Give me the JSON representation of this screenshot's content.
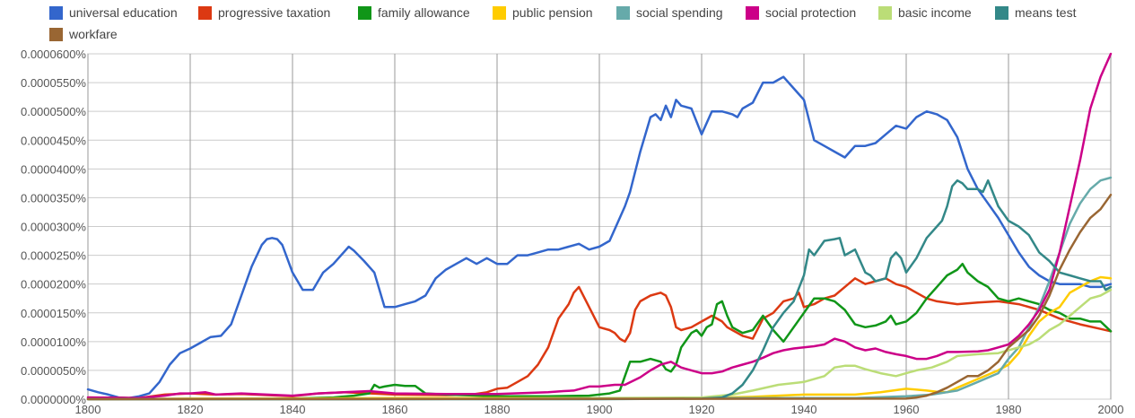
{
  "chart_data": {
    "type": "line",
    "title": "",
    "xlabel": "",
    "ylabel": "",
    "xlim": [
      1800,
      2000
    ],
    "ylim": [
      0,
      6e-05
    ],
    "grid": true,
    "legend_placement": "top",
    "x_ticks": [
      "1800",
      "1820",
      "1840",
      "1860",
      "1880",
      "1900",
      "1920",
      "1940",
      "1960",
      "1980",
      "2000"
    ],
    "y_ticks": [
      "0.0000000%",
      "0.0000050%",
      "0.0000100%",
      "0.0000150%",
      "0.0000200%",
      "0.0000250%",
      "0.0000300%",
      "0.0000350%",
      "0.0000400%",
      "0.0000450%",
      "0.0000500%",
      "0.0000550%",
      "0.0000600%"
    ],
    "series": [
      {
        "name": "universal education",
        "color": "#3366cc",
        "x": [
          1800,
          1802,
          1804,
          1806,
          1808,
          1810,
          1812,
          1814,
          1816,
          1818,
          1820,
          1822,
          1824,
          1826,
          1828,
          1830,
          1832,
          1834,
          1835,
          1836,
          1837,
          1838,
          1840,
          1842,
          1844,
          1846,
          1848,
          1850,
          1851,
          1852,
          1854,
          1856,
          1858,
          1860,
          1862,
          1864,
          1866,
          1868,
          1870,
          1872,
          1874,
          1876,
          1878,
          1880,
          1882,
          1884,
          1886,
          1888,
          1890,
          1892,
          1894,
          1896,
          1898,
          1900,
          1902,
          1904,
          1905,
          1906,
          1908,
          1910,
          1911,
          1912,
          1913,
          1914,
          1915,
          1916,
          1918,
          1920,
          1922,
          1924,
          1926,
          1927,
          1928,
          1930,
          1932,
          1934,
          1935,
          1936,
          1938,
          1940,
          1942,
          1944,
          1946,
          1948,
          1950,
          1952,
          1954,
          1956,
          1958,
          1960,
          1962,
          1964,
          1966,
          1968,
          1970,
          1972,
          1974,
          1976,
          1978,
          1980,
          1982,
          1984,
          1986,
          1988,
          1990,
          1992,
          1994,
          1996,
          1998,
          2000
        ],
        "values": [
          1.7e-06,
          1.2e-06,
          8e-07,
          3e-07,
          2e-07,
          5e-07,
          1e-06,
          3e-06,
          6e-06,
          8e-06,
          8.8e-06,
          9.8e-06,
          1.08e-05,
          1.1e-05,
          1.3e-05,
          1.8e-05,
          2.3e-05,
          2.68e-05,
          2.78e-05,
          2.8e-05,
          2.78e-05,
          2.68e-05,
          2.2e-05,
          1.9e-05,
          1.9e-05,
          2.2e-05,
          2.35e-05,
          2.55e-05,
          2.65e-05,
          2.58e-05,
          2.4e-05,
          2.2e-05,
          1.6e-05,
          1.6e-05,
          1.65e-05,
          1.7e-05,
          1.8e-05,
          2.1e-05,
          2.25e-05,
          2.35e-05,
          2.45e-05,
          2.35e-05,
          2.45e-05,
          2.35e-05,
          2.35e-05,
          2.5e-05,
          2.5e-05,
          2.55e-05,
          2.6e-05,
          2.6e-05,
          2.65e-05,
          2.7e-05,
          2.6e-05,
          2.65e-05,
          2.75e-05,
          3.15e-05,
          3.35e-05,
          3.6e-05,
          4.3e-05,
          4.9e-05,
          4.95e-05,
          4.85e-05,
          5.1e-05,
          4.9e-05,
          5.2e-05,
          5.1e-05,
          5.05e-05,
          4.6e-05,
          5e-05,
          5e-05,
          4.95e-05,
          4.9e-05,
          5.05e-05,
          5.15e-05,
          5.5e-05,
          5.5e-05,
          5.55e-05,
          5.6e-05,
          5.4e-05,
          5.2e-05,
          4.5e-05,
          4.4e-05,
          4.3e-05,
          4.2e-05,
          4.4e-05,
          4.4e-05,
          4.45e-05,
          4.6e-05,
          4.75e-05,
          4.7e-05,
          4.9e-05,
          5e-05,
          4.95e-05,
          4.85e-05,
          4.55e-05,
          4e-05,
          3.65e-05,
          3.4e-05,
          3.15e-05,
          2.85e-05,
          2.55e-05,
          2.3e-05,
          2.15e-05,
          2.05e-05,
          2e-05,
          2e-05,
          2e-05,
          1.95e-05,
          1.95e-05,
          2e-05
        ]
      },
      {
        "name": "progressive taxation",
        "color": "#dc3912",
        "x": [
          1800,
          1810,
          1815,
          1820,
          1825,
          1830,
          1840,
          1845,
          1850,
          1860,
          1870,
          1875,
          1878,
          1880,
          1882,
          1884,
          1886,
          1888,
          1890,
          1892,
          1894,
          1895,
          1896,
          1898,
          1900,
          1902,
          1903,
          1904,
          1905,
          1906,
          1907,
          1908,
          1910,
          1912,
          1913,
          1914,
          1915,
          1916,
          1918,
          1920,
          1922,
          1924,
          1925,
          1926,
          1927,
          1928,
          1930,
          1932,
          1934,
          1936,
          1938,
          1939,
          1940,
          1942,
          1944,
          1946,
          1948,
          1950,
          1952,
          1954,
          1956,
          1958,
          1960,
          1962,
          1964,
          1966,
          1970,
          1974,
          1978,
          1982,
          1986,
          1990,
          1994,
          1998,
          2000
        ],
        "values": [
          3e-07,
          2e-07,
          8e-07,
          1e-06,
          8e-07,
          9e-07,
          5e-07,
          1e-06,
          1.2e-06,
          8e-07,
          7e-07,
          8e-07,
          1.2e-06,
          1.8e-06,
          2e-06,
          3e-06,
          4e-06,
          6e-06,
          9e-06,
          1.4e-05,
          1.65e-05,
          1.85e-05,
          1.95e-05,
          1.6e-05,
          1.25e-05,
          1.2e-05,
          1.15e-05,
          1.05e-05,
          1e-05,
          1.15e-05,
          1.55e-05,
          1.7e-05,
          1.8e-05,
          1.85e-05,
          1.8e-05,
          1.6e-05,
          1.25e-05,
          1.2e-05,
          1.25e-05,
          1.35e-05,
          1.45e-05,
          1.35e-05,
          1.25e-05,
          1.2e-05,
          1.15e-05,
          1.1e-05,
          1.05e-05,
          1.4e-05,
          1.5e-05,
          1.7e-05,
          1.75e-05,
          1.85e-05,
          1.6e-05,
          1.65e-05,
          1.75e-05,
          1.8e-05,
          1.95e-05,
          2.1e-05,
          2e-05,
          2.05e-05,
          2.1e-05,
          2e-05,
          1.95e-05,
          1.85e-05,
          1.75e-05,
          1.7e-05,
          1.65e-05,
          1.68e-05,
          1.7e-05,
          1.65e-05,
          1.55e-05,
          1.4e-05,
          1.3e-05,
          1.22e-05,
          1.18e-05
        ]
      },
      {
        "name": "family allowance",
        "color": "#109618",
        "x": [
          1800,
          1840,
          1848,
          1852,
          1855,
          1856,
          1857,
          1858,
          1860,
          1862,
          1864,
          1866,
          1870,
          1880,
          1890,
          1898,
          1900,
          1902,
          1904,
          1905,
          1906,
          1908,
          1910,
          1912,
          1913,
          1914,
          1915,
          1916,
          1918,
          1919,
          1920,
          1921,
          1922,
          1923,
          1924,
          1925,
          1926,
          1928,
          1930,
          1932,
          1934,
          1936,
          1938,
          1940,
          1942,
          1944,
          1946,
          1948,
          1950,
          1952,
          1954,
          1956,
          1957,
          1958,
          1960,
          1962,
          1964,
          1966,
          1968,
          1970,
          1971,
          1972,
          1974,
          1976,
          1978,
          1980,
          1982,
          1984,
          1986,
          1988,
          1990,
          1992,
          1994,
          1996,
          1998,
          2000
        ],
        "values": [
          0,
          1e-07,
          3e-07,
          6e-07,
          1e-06,
          2.5e-06,
          2e-06,
          2.2e-06,
          2.5e-06,
          2.3e-06,
          2.3e-06,
          1e-06,
          8e-07,
          5e-07,
          5e-07,
          6e-07,
          8e-07,
          1e-06,
          1.5e-06,
          4e-06,
          6.5e-06,
          6.5e-06,
          7e-06,
          6.5e-06,
          5.2e-06,
          4.8e-06,
          6e-06,
          9e-06,
          1.15e-05,
          1.2e-05,
          1.1e-05,
          1.25e-05,
          1.3e-05,
          1.65e-05,
          1.7e-05,
          1.45e-05,
          1.25e-05,
          1.15e-05,
          1.2e-05,
          1.45e-05,
          1.2e-05,
          1e-05,
          1.25e-05,
          1.5e-05,
          1.75e-05,
          1.75e-05,
          1.7e-05,
          1.55e-05,
          1.3e-05,
          1.25e-05,
          1.28e-05,
          1.35e-05,
          1.45e-05,
          1.3e-05,
          1.35e-05,
          1.5e-05,
          1.75e-05,
          1.95e-05,
          2.15e-05,
          2.25e-05,
          2.35e-05,
          2.2e-05,
          2.05e-05,
          1.95e-05,
          1.75e-05,
          1.7e-05,
          1.75e-05,
          1.7e-05,
          1.65e-05,
          1.55e-05,
          1.5e-05,
          1.4e-05,
          1.4e-05,
          1.35e-05,
          1.35e-05,
          1.18e-05
        ]
      },
      {
        "name": "public pension",
        "color": "#ffcc00",
        "x": [
          1800,
          1820,
          1840,
          1860,
          1880,
          1900,
          1920,
          1930,
          1940,
          1950,
          1955,
          1960,
          1964,
          1966,
          1968,
          1970,
          1974,
          1978,
          1980,
          1982,
          1984,
          1986,
          1988,
          1990,
          1992,
          1994,
          1996,
          1998,
          2000
        ],
        "values": [
          0,
          1e-07,
          1e-07,
          2e-07,
          2e-07,
          2e-07,
          2e-07,
          4e-07,
          8e-07,
          8e-07,
          1.2e-06,
          1.8e-06,
          1.5e-06,
          1.3e-06,
          1.2e-06,
          2e-06,
          3.5e-06,
          5e-06,
          6e-06,
          8e-06,
          1.1e-05,
          1.35e-05,
          1.5e-05,
          1.6e-05,
          1.85e-05,
          1.95e-05,
          2.05e-05,
          2.12e-05,
          2.1e-05
        ]
      },
      {
        "name": "social spending",
        "color": "#66aaaa",
        "x": [
          1800,
          1850,
          1900,
          1920,
          1940,
          1950,
          1960,
          1965,
          1970,
          1974,
          1978,
          1980,
          1982,
          1984,
          1986,
          1988,
          1990,
          1992,
          1994,
          1996,
          1998,
          2000
        ],
        "values": [
          0,
          0,
          1e-07,
          2e-07,
          2e-07,
          2e-07,
          5e-07,
          8e-07,
          1.5e-06,
          3e-06,
          4.5e-06,
          7e-06,
          9e-06,
          1.25e-05,
          1.6e-05,
          2.05e-05,
          2.55e-05,
          3.05e-05,
          3.4e-05,
          3.65e-05,
          3.8e-05,
          3.85e-05
        ]
      },
      {
        "name": "social protection",
        "color": "#cc0088",
        "x": [
          1800,
          1810,
          1815,
          1818,
          1820,
          1823,
          1825,
          1830,
          1840,
          1845,
          1850,
          1855,
          1860,
          1870,
          1880,
          1890,
          1893,
          1895,
          1898,
          1900,
          1903,
          1905,
          1908,
          1910,
          1912,
          1914,
          1916,
          1918,
          1920,
          1922,
          1924,
          1926,
          1928,
          1930,
          1932,
          1934,
          1936,
          1938,
          1940,
          1942,
          1944,
          1946,
          1948,
          1950,
          1952,
          1954,
          1956,
          1958,
          1960,
          1962,
          1964,
          1966,
          1968,
          1970,
          1974,
          1976,
          1978,
          1980,
          1982,
          1984,
          1986,
          1988,
          1990,
          1992,
          1994,
          1996,
          1998,
          2000
        ],
        "values": [
          3e-07,
          2e-07,
          6e-07,
          1e-06,
          1e-06,
          1.2e-06,
          8e-07,
          1e-06,
          6e-07,
          1e-06,
          1.2e-06,
          1.4e-06,
          1e-06,
          9e-07,
          9e-07,
          1.2e-06,
          1.4e-06,
          1.5e-06,
          2.2e-06,
          2.2e-06,
          2.5e-06,
          2.5e-06,
          3.8e-06,
          5e-06,
          6e-06,
          6.5e-06,
          5.5e-06,
          5e-06,
          4.5e-06,
          4.5e-06,
          4.8e-06,
          5.5e-06,
          6e-06,
          6.5e-06,
          7.2e-06,
          8e-06,
          8.5e-06,
          8.8e-06,
          9e-06,
          9.2e-06,
          9.5e-06,
          1.05e-05,
          1e-05,
          9e-06,
          8.5e-06,
          8.8e-06,
          8.2e-06,
          7.8e-06,
          7.5e-06,
          7e-06,
          7e-06,
          7.5e-06,
          8.2e-06,
          8.2e-06,
          8.3e-06,
          8.5e-06,
          9e-06,
          9.5e-06,
          1.1e-05,
          1.3e-05,
          1.55e-05,
          1.9e-05,
          2.55e-05,
          3.35e-05,
          4.15e-05,
          5.05e-05,
          5.6e-05,
          6e-05
        ]
      },
      {
        "name": "basic income",
        "color": "#bbdd77",
        "x": [
          1800,
          1880,
          1900,
          1920,
          1926,
          1930,
          1935,
          1940,
          1944,
          1946,
          1948,
          1950,
          1952,
          1955,
          1958,
          1960,
          1962,
          1965,
          1968,
          1970,
          1974,
          1978,
          1980,
          1982,
          1984,
          1986,
          1988,
          1990,
          1992,
          1994,
          1996,
          1998,
          2000
        ],
        "values": [
          0,
          1e-07,
          2e-07,
          3e-07,
          8e-07,
          1.5e-06,
          2.5e-06,
          3e-06,
          4e-06,
          5.5e-06,
          5.8e-06,
          5.8e-06,
          5.2e-06,
          4.5e-06,
          4e-06,
          4.5e-06,
          5e-06,
          5.5e-06,
          6.5e-06,
          7.5e-06,
          7.8e-06,
          8e-06,
          8.5e-06,
          9e-06,
          9.5e-06,
          1.05e-05,
          1.2e-05,
          1.3e-05,
          1.45e-05,
          1.6e-05,
          1.75e-05,
          1.8e-05,
          1.9e-05
        ]
      },
      {
        "name": "means test",
        "color": "#338888",
        "x": [
          1800,
          1900,
          1920,
          1924,
          1926,
          1928,
          1930,
          1932,
          1934,
          1936,
          1938,
          1940,
          1941,
          1942,
          1944,
          1946,
          1947,
          1948,
          1949,
          1950,
          1951,
          1952,
          1953,
          1954,
          1956,
          1957,
          1958,
          1959,
          1960,
          1962,
          1964,
          1966,
          1967,
          1968,
          1969,
          1970,
          1971,
          1972,
          1974,
          1975,
          1976,
          1978,
          1980,
          1982,
          1984,
          1986,
          1988,
          1990,
          1992,
          1994,
          1996,
          1998,
          1999,
          2000
        ],
        "values": [
          0,
          0,
          1e-07,
          3e-07,
          1e-06,
          2.5e-06,
          5e-06,
          8.5e-06,
          1.25e-05,
          1.5e-05,
          1.7e-05,
          2.15e-05,
          2.6e-05,
          2.5e-05,
          2.75e-05,
          2.78e-05,
          2.8e-05,
          2.5e-05,
          2.55e-05,
          2.6e-05,
          2.4e-05,
          2.2e-05,
          2.15e-05,
          2.05e-05,
          2.1e-05,
          2.45e-05,
          2.55e-05,
          2.45e-05,
          2.2e-05,
          2.45e-05,
          2.8e-05,
          3e-05,
          3.1e-05,
          3.35e-05,
          3.7e-05,
          3.8e-05,
          3.75e-05,
          3.65e-05,
          3.65e-05,
          3.6e-05,
          3.8e-05,
          3.35e-05,
          3.1e-05,
          3e-05,
          2.85e-05,
          2.55e-05,
          2.4e-05,
          2.2e-05,
          2.15e-05,
          2.1e-05,
          2.05e-05,
          2.05e-05,
          1.9e-05,
          1.95e-05
        ]
      },
      {
        "name": "workfare",
        "color": "#996633",
        "x": [
          1800,
          1960,
          1962,
          1964,
          1966,
          1968,
          1970,
          1972,
          1974,
          1976,
          1978,
          1980,
          1982,
          1984,
          1986,
          1988,
          1990,
          1992,
          1994,
          1996,
          1998,
          2000
        ],
        "values": [
          0,
          1e-07,
          3e-07,
          6e-07,
          1.2e-06,
          2e-06,
          3e-06,
          4e-06,
          4e-06,
          5e-06,
          6.5e-06,
          9e-06,
          1.05e-05,
          1.2e-05,
          1.45e-05,
          1.8e-05,
          2.25e-05,
          2.6e-05,
          2.9e-05,
          3.15e-05,
          3.3e-05,
          3.55e-05
        ]
      }
    ]
  }
}
